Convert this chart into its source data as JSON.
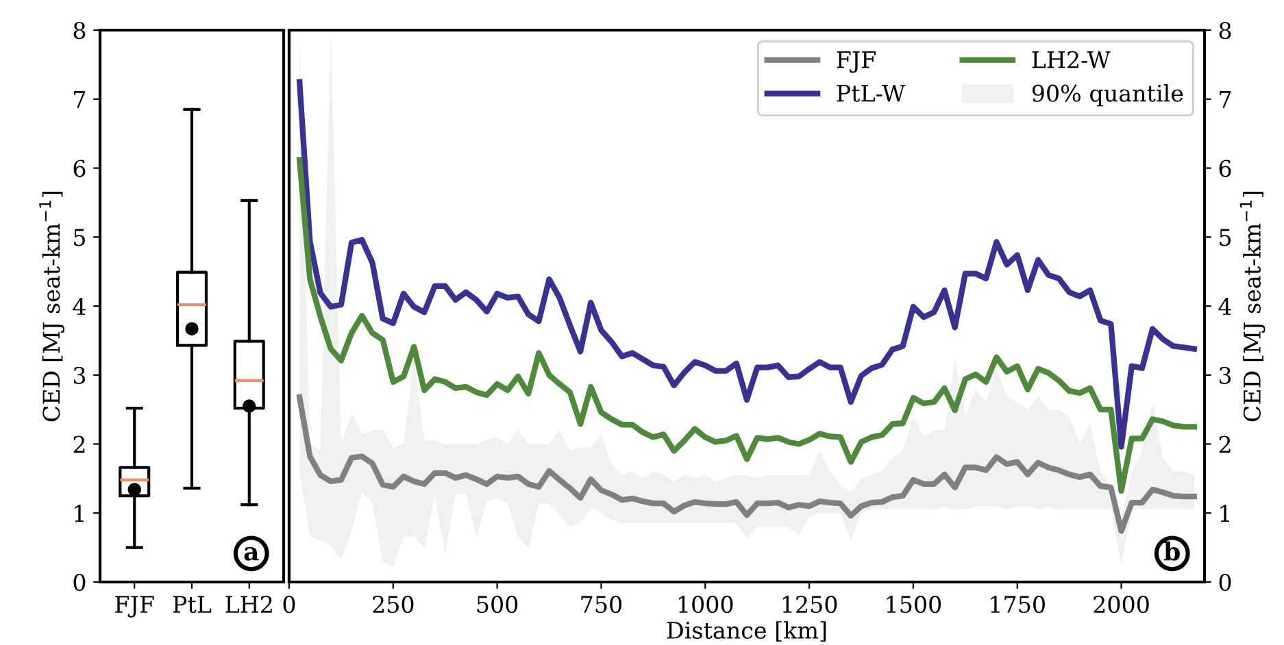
{
  "chart_data": [
    {
      "type": "box",
      "categories": [
        "FJF",
        "PtL",
        "LH2"
      ],
      "ylabel": "CED [MJ seat-km$^{−1}$]",
      "ylim": [
        0,
        8
      ],
      "yticks": [
        0,
        1,
        2,
        3,
        4,
        5,
        6,
        7,
        8
      ],
      "grid": false,
      "annotations": [
        "a"
      ],
      "boxes": [
        {
          "low": 0.5,
          "q1": 1.25,
          "median": 1.48,
          "q3": 1.66,
          "high": 2.52,
          "mean": 1.34
        },
        {
          "low": 1.36,
          "q1": 3.43,
          "median": 4.02,
          "q3": 4.49,
          "high": 6.85,
          "mean": 3.67
        },
        {
          "low": 1.12,
          "q1": 2.52,
          "median": 2.92,
          "q3": 3.49,
          "high": 5.53,
          "mean": 2.55
        }
      ]
    },
    {
      "type": "line",
      "xlabel": "Distance [km]",
      "ylabel": "CED [MJ seat-km$^{−1}$]",
      "xlim": [
        0,
        2200
      ],
      "xticks": [
        0,
        250,
        500,
        750,
        1000,
        1250,
        1500,
        1750,
        2000
      ],
      "ylim": [
        0,
        8
      ],
      "yticks": [
        0,
        1,
        2,
        3,
        4,
        5,
        6,
        7,
        8
      ],
      "grid": false,
      "legend": "top right",
      "marker": "none",
      "line_style": "solid",
      "annotations": [
        "b",
        "90% quantile"
      ],
      "series": [
        {
          "name": "FJF",
          "color": "#808080",
          "x": [
            25,
            50,
            75,
            100,
            125,
            150,
            175,
            200,
            225,
            250,
            275,
            300,
            325,
            350,
            375,
            400,
            425,
            450,
            475,
            500,
            525,
            550,
            575,
            600,
            625,
            650,
            675,
            700,
            725,
            750,
            775,
            800,
            825,
            850,
            875,
            900,
            925,
            950,
            975,
            1000,
            1025,
            1050,
            1075,
            1100,
            1125,
            1150,
            1175,
            1200,
            1225,
            1250,
            1275,
            1300,
            1325,
            1350,
            1375,
            1400,
            1425,
            1450,
            1475,
            1500,
            1525,
            1550,
            1575,
            1600,
            1625,
            1650,
            1675,
            1700,
            1725,
            1750,
            1775,
            1800,
            1825,
            1850,
            1875,
            1900,
            1925,
            1950,
            1975,
            2000,
            2025,
            2050,
            2075,
            2100,
            2125,
            2150,
            2175
          ],
          "values": [
            2.68,
            1.82,
            1.55,
            1.46,
            1.48,
            1.8,
            1.82,
            1.72,
            1.41,
            1.38,
            1.53,
            1.46,
            1.42,
            1.58,
            1.58,
            1.51,
            1.55,
            1.49,
            1.42,
            1.53,
            1.51,
            1.53,
            1.42,
            1.38,
            1.61,
            1.48,
            1.36,
            1.22,
            1.49,
            1.33,
            1.27,
            1.19,
            1.21,
            1.17,
            1.14,
            1.14,
            1.02,
            1.11,
            1.16,
            1.14,
            1.13,
            1.13,
            1.16,
            0.97,
            1.14,
            1.14,
            1.15,
            1.08,
            1.12,
            1.1,
            1.17,
            1.15,
            1.14,
            0.96,
            1.1,
            1.15,
            1.16,
            1.23,
            1.25,
            1.48,
            1.42,
            1.42,
            1.56,
            1.37,
            1.66,
            1.66,
            1.62,
            1.81,
            1.71,
            1.74,
            1.56,
            1.73,
            1.66,
            1.62,
            1.56,
            1.52,
            1.56,
            1.39,
            1.37,
            0.74,
            1.15,
            1.15,
            1.34,
            1.3,
            1.25,
            1.24,
            1.24
          ],
          "lower": [
            1.58,
            0.66,
            0.6,
            0.53,
            0.33,
            0.73,
            1.31,
            1.14,
            0.29,
            0.22,
            0.66,
            0.66,
            0.49,
            1.27,
            0.39,
            1.27,
            1.27,
            0.66,
            1.17,
            1.21,
            1.14,
            0.66,
            0.49,
            1.14,
            1.14,
            0.97,
            0.8,
            0.87,
            1.07,
            1.0,
            0.9,
            0.85,
            0.85,
            0.85,
            0.85,
            0.85,
            0.85,
            0.85,
            0.85,
            0.85,
            0.85,
            0.85,
            0.85,
            0.63,
            0.8,
            0.8,
            0.8,
            0.8,
            0.68,
            0.95,
            1.0,
            1.0,
            1.0,
            0.6,
            1.0,
            1.05,
            1.05,
            1.05,
            1.05,
            1.05,
            1.05,
            1.05,
            1.1,
            1.05,
            1.05,
            1.1,
            1.1,
            1.1,
            1.05,
            1.1,
            1.1,
            1.05,
            1.1,
            1.05,
            1.05,
            1.05,
            1.05,
            1.05,
            1.05,
            0.25,
            1.05,
            1.05,
            1.05,
            1.05,
            1.05,
            1.05,
            1.05
          ],
          "upper": [
            8,
            2.0,
            1.9,
            8,
            2.0,
            2.45,
            2.15,
            2.2,
            2.2,
            1.95,
            2.0,
            3.25,
            2.05,
            2.05,
            2.0,
            2.0,
            2.0,
            2.0,
            2.05,
            2.1,
            2.0,
            2.2,
            2.0,
            2.0,
            2.0,
            2.2,
            1.9,
            1.95,
            1.95,
            2.15,
            1.7,
            1.55,
            1.6,
            1.5,
            1.6,
            1.55,
            1.45,
            1.55,
            1.5,
            1.55,
            1.45,
            1.5,
            1.55,
            1.55,
            1.5,
            1.55,
            1.55,
            1.55,
            1.55,
            1.55,
            1.9,
            1.6,
            1.4,
            1.3,
            1.5,
            1.55,
            1.6,
            1.8,
            1.9,
            2.4,
            2.1,
            2.2,
            2.2,
            3.25,
            2.4,
            2.8,
            2.6,
            3.1,
            2.7,
            2.6,
            2.5,
            2.7,
            2.5,
            2.5,
            2.4,
            2.0,
            2.3,
            1.6,
            1.4,
            0.9,
            1.6,
            1.9,
            2.6,
            1.8,
            1.6,
            1.6,
            1.55
          ]
        },
        {
          "name": "PtL-W",
          "color": "#3a3290",
          "x": [
            25,
            50,
            75,
            100,
            125,
            150,
            175,
            200,
            225,
            250,
            275,
            300,
            325,
            350,
            375,
            400,
            425,
            450,
            475,
            500,
            525,
            550,
            575,
            600,
            625,
            650,
            675,
            700,
            725,
            750,
            775,
            800,
            825,
            850,
            875,
            900,
            925,
            950,
            975,
            1000,
            1025,
            1050,
            1075,
            1100,
            1125,
            1150,
            1175,
            1200,
            1225,
            1250,
            1275,
            1300,
            1325,
            1350,
            1375,
            1400,
            1425,
            1450,
            1475,
            1500,
            1525,
            1550,
            1575,
            1600,
            1625,
            1650,
            1675,
            1700,
            1725,
            1750,
            1775,
            1800,
            1825,
            1850,
            1875,
            1900,
            1925,
            1950,
            1975,
            2000,
            2025,
            2050,
            2075,
            2100,
            2125,
            2150,
            2175
          ],
          "values": [
            7.25,
            4.94,
            4.19,
            3.99,
            4.02,
            4.92,
            4.96,
            4.63,
            3.82,
            3.75,
            4.18,
            3.99,
            3.91,
            4.29,
            4.29,
            4.09,
            4.2,
            4.09,
            3.92,
            4.18,
            4.12,
            4.14,
            3.88,
            3.78,
            4.39,
            4.12,
            3.72,
            3.34,
            4.05,
            3.65,
            3.48,
            3.27,
            3.32,
            3.23,
            3.14,
            3.12,
            2.85,
            3.04,
            3.19,
            3.14,
            3.06,
            3.06,
            3.17,
            2.64,
            3.11,
            3.11,
            3.14,
            2.97,
            2.98,
            3.09,
            3.19,
            3.11,
            3.11,
            2.61,
            2.99,
            3.1,
            3.15,
            3.37,
            3.42,
            3.99,
            3.84,
            3.91,
            4.23,
            3.69,
            4.47,
            4.47,
            4.4,
            4.93,
            4.6,
            4.74,
            4.23,
            4.67,
            4.45,
            4.4,
            4.2,
            4.14,
            4.23,
            3.79,
            3.74,
            1.96,
            3.13,
            3.1,
            3.67,
            3.52,
            3.42,
            3.4,
            3.38
          ]
        },
        {
          "name": "LH2-W",
          "color": "#4f8a3c",
          "x": [
            25,
            50,
            75,
            100,
            125,
            150,
            175,
            200,
            225,
            250,
            275,
            300,
            325,
            350,
            375,
            400,
            425,
            450,
            475,
            500,
            525,
            550,
            575,
            600,
            625,
            650,
            675,
            700,
            725,
            750,
            775,
            800,
            825,
            850,
            875,
            900,
            925,
            950,
            975,
            1000,
            1025,
            1050,
            1075,
            1100,
            1125,
            1150,
            1175,
            1200,
            1225,
            1250,
            1275,
            1300,
            1325,
            1350,
            1375,
            1400,
            1425,
            1450,
            1475,
            1500,
            1525,
            1550,
            1575,
            1600,
            1625,
            1650,
            1675,
            1700,
            1725,
            1750,
            1775,
            1800,
            1825,
            1850,
            1875,
            1900,
            1925,
            1950,
            1975,
            2000,
            2025,
            2050,
            2075,
            2100,
            2125,
            2150,
            2175
          ],
          "values": [
            6.12,
            4.39,
            3.85,
            3.38,
            3.21,
            3.61,
            3.86,
            3.61,
            3.51,
            2.9,
            2.98,
            3.41,
            2.78,
            2.94,
            2.9,
            2.81,
            2.83,
            2.75,
            2.71,
            2.87,
            2.78,
            2.98,
            2.73,
            3.32,
            3.0,
            2.87,
            2.75,
            2.29,
            2.83,
            2.46,
            2.36,
            2.28,
            2.28,
            2.17,
            2.1,
            2.14,
            1.9,
            2.05,
            2.22,
            2.1,
            2.03,
            2.05,
            2.12,
            1.78,
            2.09,
            2.07,
            2.09,
            2.03,
            2.0,
            2.06,
            2.15,
            2.11,
            2.1,
            1.74,
            2.03,
            2.1,
            2.13,
            2.29,
            2.3,
            2.67,
            2.59,
            2.61,
            2.81,
            2.49,
            2.94,
            3.01,
            2.9,
            3.26,
            3.05,
            3.13,
            2.79,
            3.09,
            3.03,
            2.92,
            2.77,
            2.74,
            2.81,
            2.5,
            2.5,
            1.32,
            2.08,
            2.08,
            2.36,
            2.33,
            2.27,
            2.25,
            2.25
          ]
        }
      ]
    }
  ]
}
